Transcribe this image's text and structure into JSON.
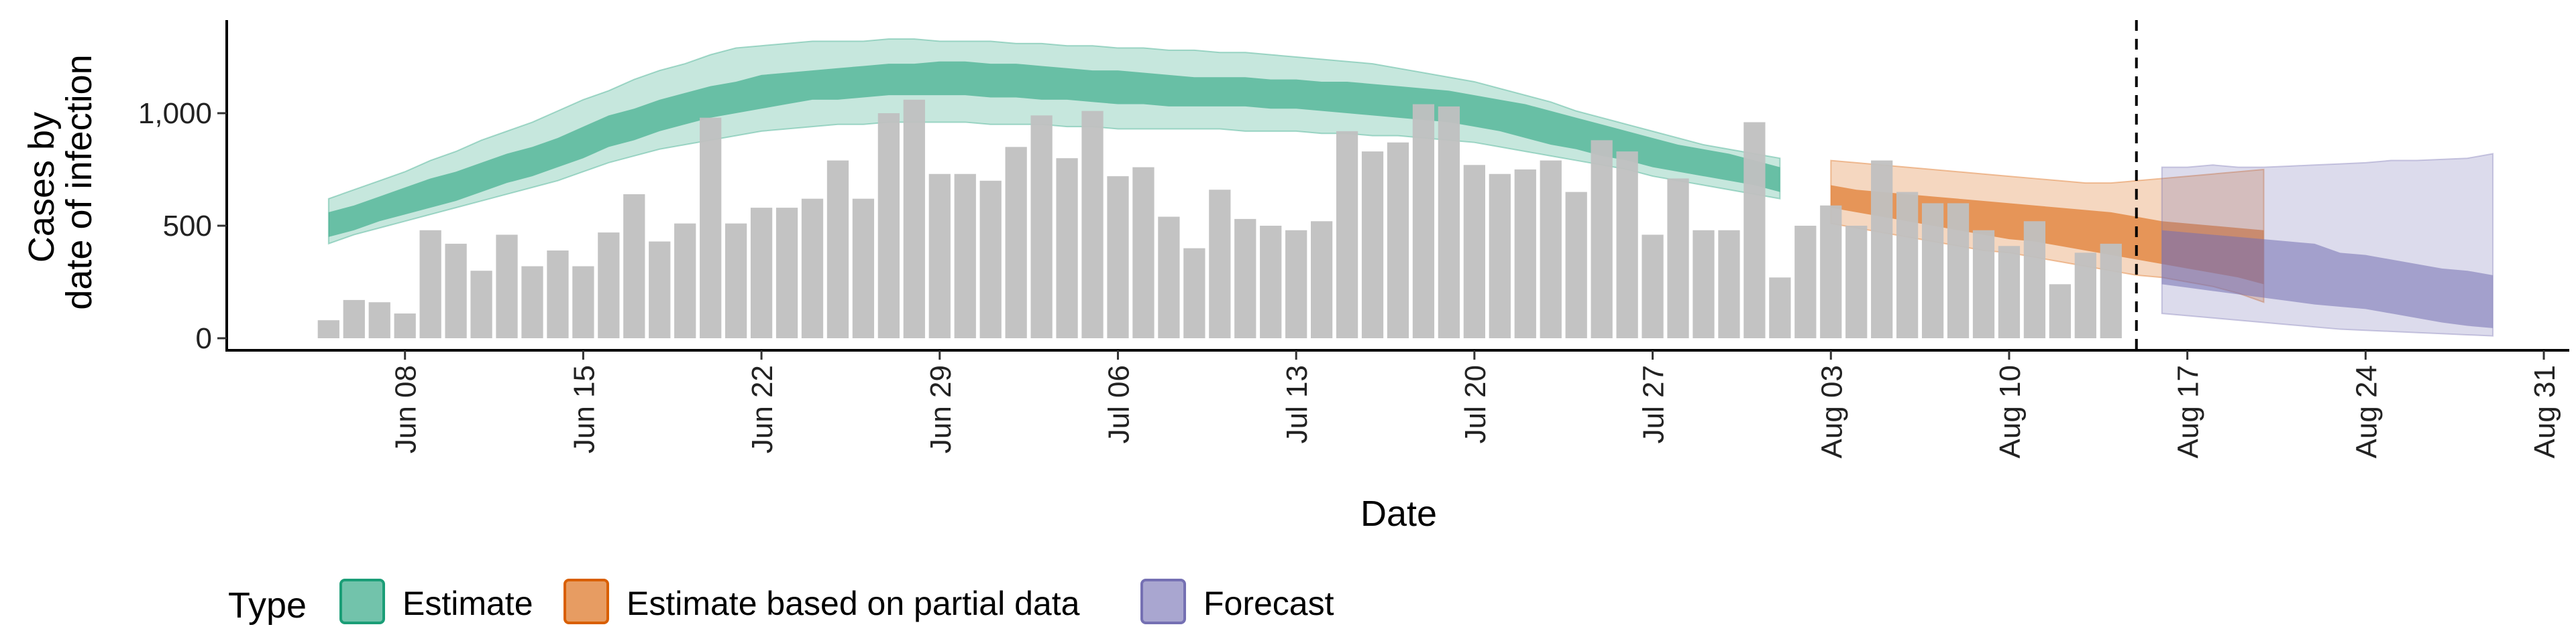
{
  "chart_data": {
    "type": "bar",
    "title": "",
    "xlabel": "Date",
    "ylabel_lines": [
      "Cases by",
      "date of infection"
    ],
    "ylim": [
      0,
      1400
    ],
    "y_ticks": [
      0,
      500,
      1000
    ],
    "y_tick_labels": [
      "0",
      "500",
      "1,000"
    ],
    "x_range": [
      "2020-06-01",
      "2020-09-01"
    ],
    "x_ticks": [
      "2020-06-08",
      "2020-06-15",
      "2020-06-22",
      "2020-06-29",
      "2020-07-06",
      "2020-07-13",
      "2020-07-20",
      "2020-07-27",
      "2020-08-03",
      "2020-08-10",
      "2020-08-17",
      "2020-08-24",
      "2020-08-31"
    ],
    "x_tick_labels": [
      "Jun 08",
      "Jun 15",
      "Jun 22",
      "Jun 29",
      "Jul 06",
      "Jul 13",
      "Jul 20",
      "Jul 27",
      "Aug 03",
      "Aug 10",
      "Aug 17",
      "Aug 24",
      "Aug 31"
    ],
    "vline_date": "2020-08-15",
    "bars": {
      "start_date": "2020-06-05",
      "color": "#c0c0c0",
      "values": [
        80,
        170,
        160,
        110,
        480,
        420,
        300,
        460,
        320,
        390,
        320,
        470,
        640,
        430,
        510,
        980,
        510,
        580,
        580,
        620,
        790,
        620,
        1000,
        1060,
        730,
        730,
        700,
        850,
        990,
        800,
        1010,
        720,
        760,
        540,
        400,
        660,
        530,
        500,
        480,
        520,
        920,
        830,
        870,
        1040,
        1030,
        770,
        730,
        750,
        790,
        650,
        880,
        830,
        460,
        710,
        480,
        480,
        960,
        270,
        500,
        590,
        500,
        790,
        650,
        600,
        600,
        480,
        410,
        520,
        240,
        380,
        420
      ]
    },
    "legend": {
      "title": "Type",
      "entries": [
        {
          "label": "Estimate",
          "fill": "#1b9e77",
          "stroke": "#1b9e77"
        },
        {
          "label": "Estimate based on partial data",
          "fill": "#d95f02",
          "stroke": "#d95f02"
        },
        {
          "label": "Forecast",
          "fill": "#7570b3",
          "stroke": "#7570b3"
        }
      ]
    },
    "series": [
      {
        "name": "Estimate",
        "color": "#1b9e77",
        "start_date": "2020-06-05",
        "lower90": [
          420,
          460,
          490,
          520,
          550,
          580,
          610,
          640,
          670,
          700,
          740,
          780,
          810,
          840,
          860,
          880,
          900,
          920,
          930,
          940,
          950,
          950,
          960,
          960,
          960,
          960,
          950,
          950,
          950,
          940,
          940,
          930,
          930,
          930,
          930,
          930,
          920,
          920,
          920,
          910,
          910,
          900,
          900,
          890,
          880,
          870,
          850,
          830,
          810,
          790,
          770,
          750,
          720,
          700,
          680,
          660,
          640,
          620
        ],
        "lower50": [
          450,
          480,
          520,
          550,
          580,
          610,
          650,
          690,
          720,
          760,
          800,
          850,
          880,
          920,
          950,
          980,
          1000,
          1020,
          1040,
          1060,
          1060,
          1070,
          1080,
          1080,
          1080,
          1080,
          1070,
          1070,
          1060,
          1060,
          1050,
          1040,
          1040,
          1030,
          1030,
          1030,
          1030,
          1020,
          1020,
          1010,
          1000,
          990,
          980,
          970,
          960,
          940,
          920,
          890,
          860,
          840,
          810,
          790,
          760,
          740,
          720,
          700,
          680,
          650
        ],
        "upper50": [
          560,
          590,
          630,
          670,
          710,
          740,
          780,
          820,
          850,
          890,
          940,
          990,
          1020,
          1060,
          1090,
          1120,
          1140,
          1170,
          1180,
          1190,
          1200,
          1210,
          1220,
          1220,
          1230,
          1230,
          1220,
          1220,
          1210,
          1200,
          1190,
          1190,
          1180,
          1170,
          1160,
          1160,
          1160,
          1150,
          1150,
          1140,
          1140,
          1130,
          1120,
          1110,
          1100,
          1080,
          1060,
          1040,
          1010,
          980,
          950,
          920,
          890,
          860,
          840,
          820,
          790,
          760
        ],
        "upper90": [
          620,
          660,
          700,
          740,
          790,
          830,
          880,
          920,
          960,
          1010,
          1060,
          1100,
          1150,
          1190,
          1220,
          1260,
          1290,
          1300,
          1310,
          1320,
          1320,
          1320,
          1330,
          1330,
          1320,
          1320,
          1320,
          1310,
          1310,
          1300,
          1300,
          1290,
          1290,
          1280,
          1280,
          1270,
          1270,
          1260,
          1250,
          1240,
          1230,
          1220,
          1200,
          1180,
          1160,
          1140,
          1110,
          1080,
          1050,
          1010,
          980,
          950,
          920,
          890,
          860,
          840,
          820,
          800
        ]
      },
      {
        "name": "Estimate based on partial data",
        "color": "#d95f02",
        "start_date": "2020-08-03",
        "lower90": [
          510,
          490,
          470,
          450,
          430,
          410,
          390,
          380,
          360,
          340,
          320,
          300,
          280,
          270,
          250,
          230,
          200,
          160
        ],
        "lower50": [
          580,
          560,
          540,
          520,
          500,
          480,
          460,
          440,
          430,
          410,
          390,
          370,
          350,
          330,
          310,
          290,
          270,
          240
        ],
        "upper50": [
          680,
          660,
          650,
          640,
          630,
          620,
          610,
          600,
          590,
          580,
          570,
          560,
          540,
          520,
          510,
          500,
          490,
          480
        ],
        "upper90": [
          790,
          780,
          770,
          760,
          750,
          740,
          730,
          720,
          710,
          700,
          690,
          690,
          700,
          710,
          720,
          730,
          740,
          750
        ]
      },
      {
        "name": "Forecast",
        "color": "#7570b3",
        "start_date": "2020-08-16",
        "lower90": [
          110,
          100,
          90,
          80,
          70,
          60,
          50,
          40,
          35,
          30,
          25,
          20,
          15,
          10
        ],
        "lower50": [
          240,
          225,
          210,
          195,
          180,
          165,
          150,
          140,
          130,
          110,
          90,
          70,
          55,
          45
        ],
        "upper50": [
          480,
          470,
          460,
          450,
          440,
          430,
          420,
          380,
          370,
          350,
          330,
          310,
          300,
          280
        ],
        "upper90": [
          760,
          760,
          770,
          760,
          760,
          765,
          770,
          775,
          780,
          790,
          790,
          795,
          800,
          820
        ]
      }
    ]
  }
}
